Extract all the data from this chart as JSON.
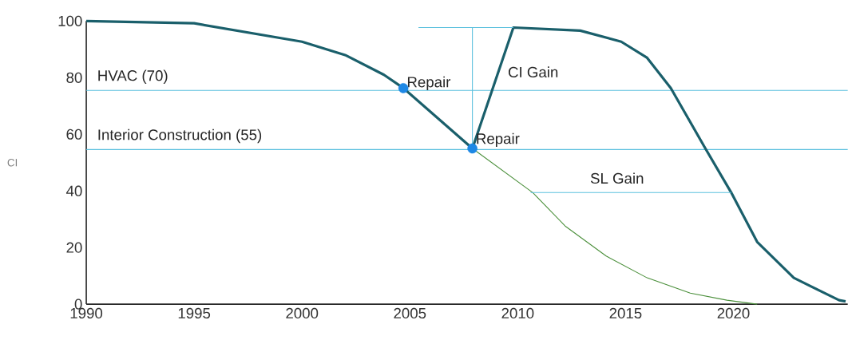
{
  "chart_data": {
    "type": "line",
    "ylabel": "CI",
    "x": [
      1990,
      1995,
      2000,
      2002,
      2003.8,
      2004.7,
      2007.9,
      2009.8,
      2012.9,
      2014.8,
      2016.0,
      2017.1,
      2018.7,
      2019.9,
      2021.1,
      2022.8,
      2024.9,
      2025.2
    ],
    "xlim": [
      1990,
      2025.3
    ],
    "ylim": [
      0,
      100
    ],
    "xticks": [
      1990,
      1995,
      2000,
      2005,
      2010,
      2015,
      2020
    ],
    "yticks": [
      0,
      20,
      40,
      60,
      80,
      100
    ],
    "grid": false,
    "series": [
      {
        "color": "#1a5f6b",
        "values": [
          100,
          99.2,
          92.7,
          88,
          81,
          76.3,
          55,
          97.7,
          96.6,
          92.7,
          87,
          76.3,
          55,
          39.4,
          22,
          9.3,
          1.4,
          1
        ]
      },
      {
        "color": "#4a8f3a",
        "x": [
          2007.9,
          2010.7,
          2012.2,
          2014.1,
          2016.0,
          2018.0,
          2019.7,
          2021.1
        ],
        "values": [
          55,
          39.4,
          27.6,
          17,
          9.3,
          3.9,
          1.4,
          0
        ]
      },
      {
        "color": "#5bc0de",
        "x": [
          2007.9,
          2007.9
        ],
        "values": [
          55,
          97.7
        ]
      },
      {
        "color": "#5bc0de",
        "x": [
          2005.4,
          2009.8
        ],
        "values": [
          97.7,
          97.7
        ]
      },
      {
        "color": "#5bc0de",
        "x": [
          2010.6,
          2019.9
        ],
        "values": [
          39.4,
          39.4
        ]
      },
      {
        "type": "scatter",
        "marker": "circle",
        "color": "#1e88e5",
        "x": [
          2004.7,
          2007.9
        ],
        "values": [
          76.3,
          55
        ]
      }
    ],
    "ref_lines": [
      {
        "axis": "y",
        "value": 75.5,
        "label": "HVAC  (70)",
        "color": "#5bc0de"
      },
      {
        "axis": "y",
        "value": 54.6,
        "label": "Interior Construction (55)",
        "color": "#5bc0de"
      }
    ],
    "annotations": [
      {
        "text": "Repair",
        "x": 2004.7,
        "y": 78
      },
      {
        "text": "Repair",
        "x": 2007.9,
        "y": 58
      },
      "CI Gain",
      "SL Gain"
    ]
  }
}
